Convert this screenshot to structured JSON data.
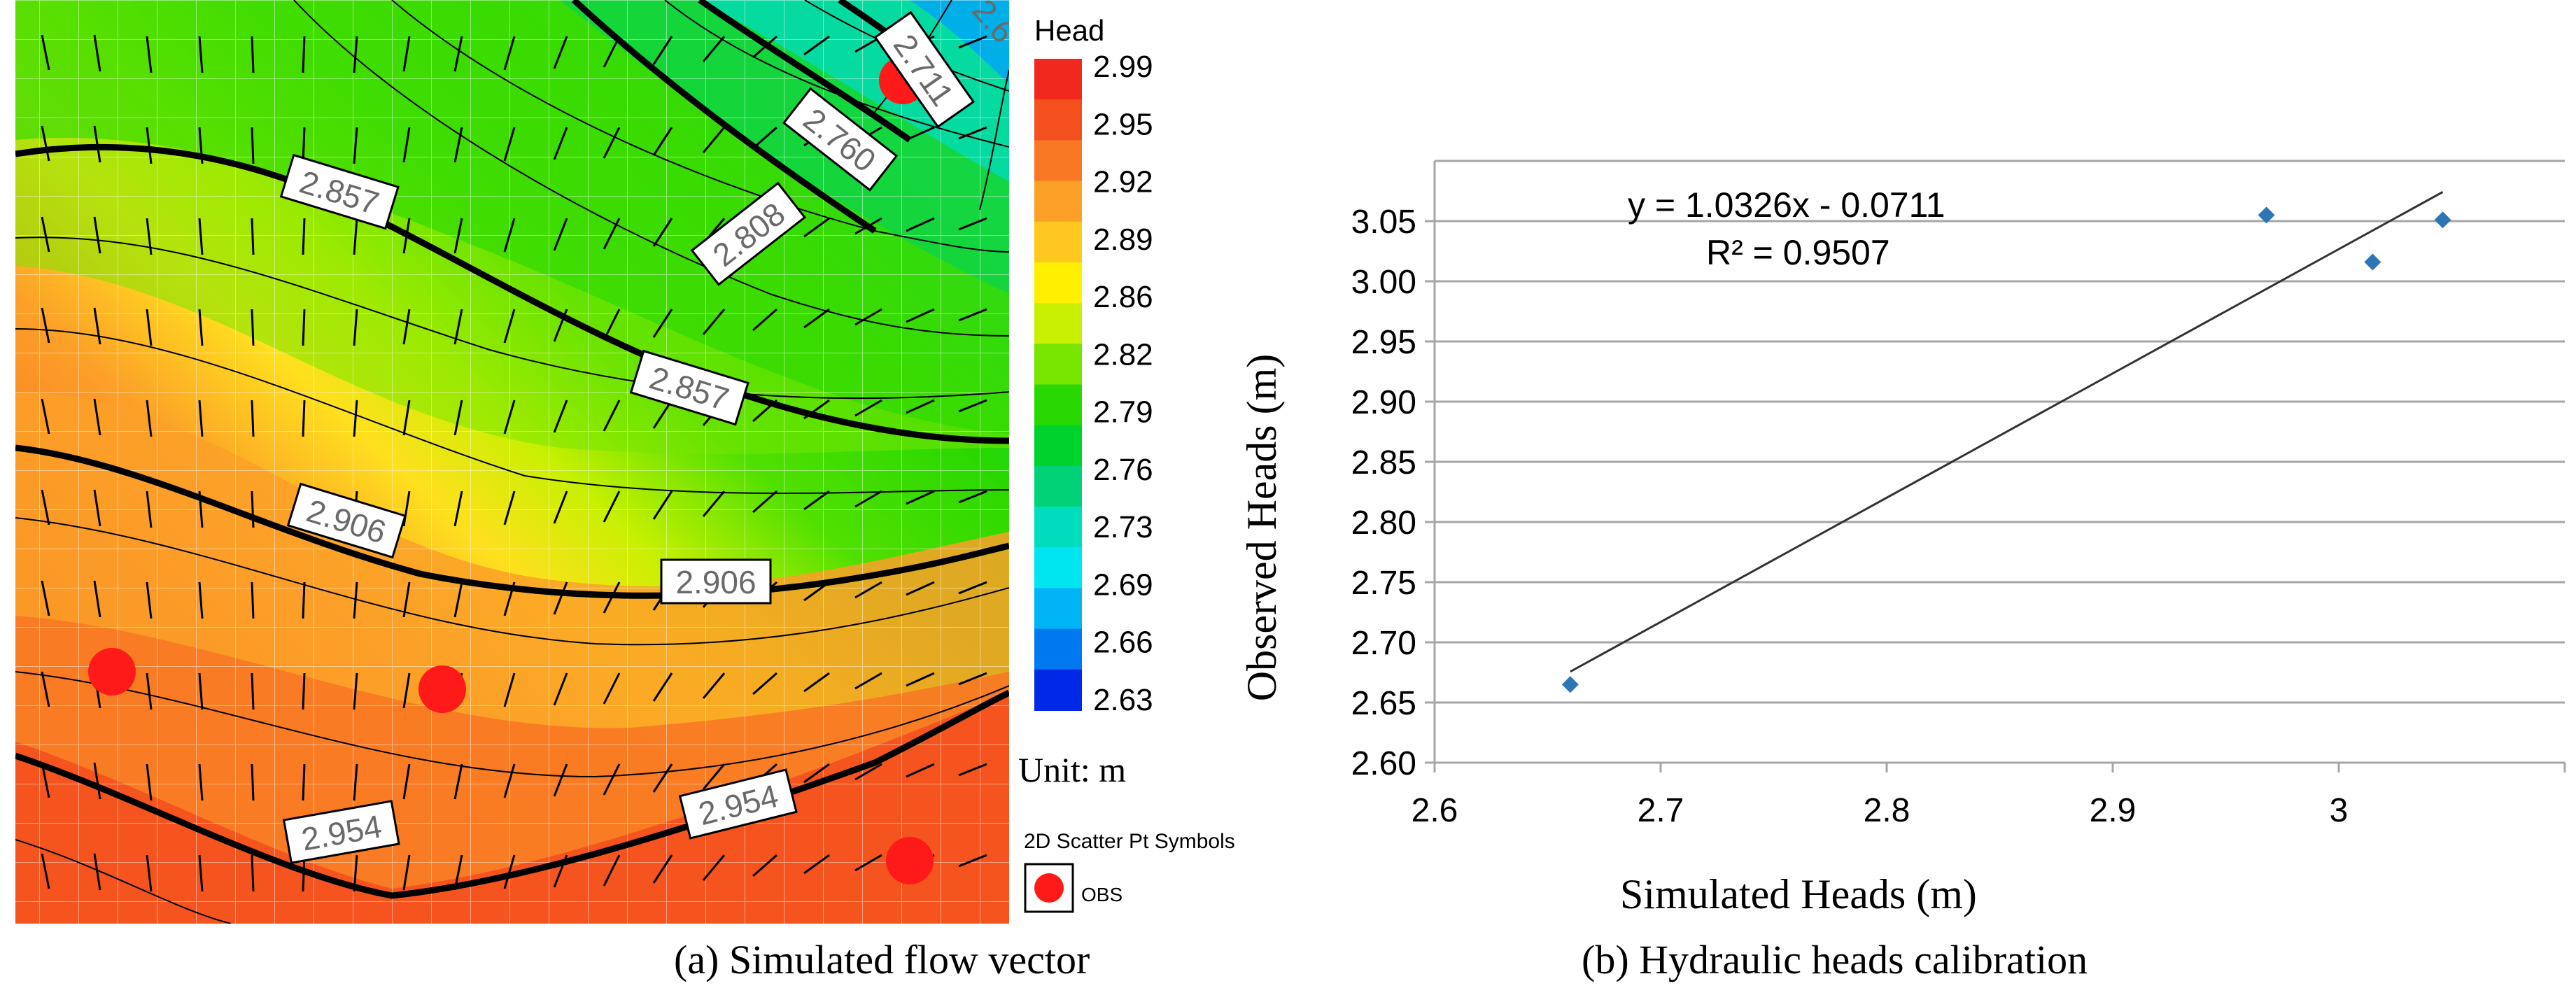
{
  "captions": {
    "left": "(a) Simulated flow vector",
    "right": "(b) Hydraulic heads calibration"
  },
  "legend": {
    "title": "Head",
    "ticks": [
      "2.99",
      "2.95",
      "2.92",
      "2.89",
      "2.86",
      "2.82",
      "2.79",
      "2.76",
      "2.73",
      "2.69",
      "2.66",
      "2.63"
    ],
    "colors": [
      "#f0281e",
      "#f4501e",
      "#f87824",
      "#fca028",
      "#ffc81e",
      "#fff000",
      "#c8f000",
      "#78e600",
      "#28d800",
      "#00d22d",
      "#00d278",
      "#00dcbe",
      "#00e6f0",
      "#00b4f5",
      "#0078f0",
      "#0028e6"
    ],
    "unit": "Unit: m",
    "symbols_title": "2D Scatter Pt Symbols",
    "symbol_label": "OBS"
  },
  "contour_labels": [
    "2.711",
    "2.760",
    "2.808",
    "2.857",
    "2.857",
    "2.906",
    "2.906",
    "2.954",
    "2.954",
    "2.6"
  ],
  "chart_data": {
    "type": "scatter",
    "title": "",
    "xlabel": "Simulated Heads (m)",
    "ylabel": "Observed Heads (m)",
    "xlim": [
      2.6,
      3.1
    ],
    "ylim": [
      2.6,
      3.1
    ],
    "x_ticks": [
      "2.6",
      "2.7",
      "2.8",
      "2.9",
      "3"
    ],
    "y_ticks": [
      "2.60",
      "2.65",
      "2.70",
      "2.75",
      "2.80",
      "2.85",
      "2.90",
      "2.95",
      "3.00",
      "3.05"
    ],
    "points": [
      {
        "x": 2.66,
        "y": 2.665
      },
      {
        "x": 2.968,
        "y": 3.055
      },
      {
        "x": 3.015,
        "y": 3.016
      },
      {
        "x": 3.046,
        "y": 3.051
      }
    ],
    "trendline": {
      "slope": 1.0326,
      "intercept": -0.0711,
      "x_range": [
        2.66,
        3.046
      ]
    },
    "equation": "y = 1.0326x - 0.0711",
    "r2_label": "R² = 0.9507",
    "marker_color": "#2e75b6"
  }
}
